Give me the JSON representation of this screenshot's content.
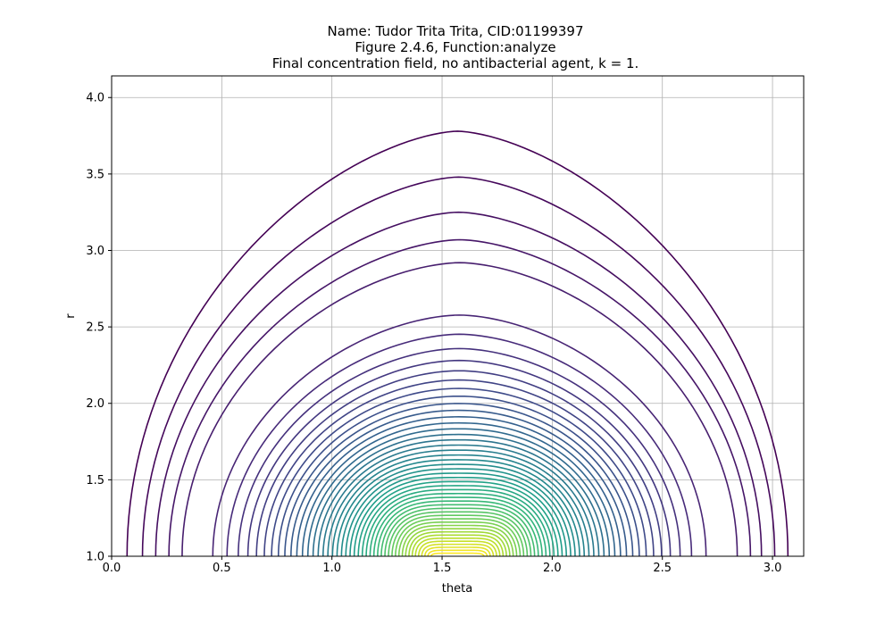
{
  "chart_data": {
    "type": "contour",
    "title_lines": [
      "Name: Tudor Trita Trita, CID:01199397",
      "Figure 2.4.6, Function:analyze",
      "Final concentration field, no antibacterial agent, k = 1."
    ],
    "xlabel": "theta",
    "ylabel": "r",
    "xlim": [
      0.0,
      3.14159
    ],
    "ylim": [
      1.0,
      4.14159
    ],
    "xticks": [
      0.0,
      0.5,
      1.0,
      1.5,
      2.0,
      2.5,
      3.0
    ],
    "xtick_labels": [
      "0.0",
      "0.5",
      "1.0",
      "1.5",
      "2.0",
      "2.5",
      "3.0"
    ],
    "yticks": [
      1.0,
      1.5,
      2.0,
      2.5,
      3.0,
      3.5,
      4.0
    ],
    "ytick_labels": [
      "1.0",
      "1.5",
      "2.0",
      "2.5",
      "3.0",
      "3.5",
      "4.0"
    ],
    "grid": true,
    "colormap": "viridis",
    "contour_count": 50,
    "outer_contours": [
      {
        "peak_r": 3.78,
        "left_theta": 0.07,
        "right_theta": 3.07
      },
      {
        "peak_r": 3.48,
        "left_theta": 0.14,
        "right_theta": 3.01
      },
      {
        "peak_r": 3.25,
        "left_theta": 0.2,
        "right_theta": 2.95
      },
      {
        "peak_r": 3.07,
        "left_theta": 0.26,
        "right_theta": 2.9
      },
      {
        "peak_r": 2.92,
        "left_theta": 0.32,
        "right_theta": 2.84
      }
    ],
    "innermost_contour": {
      "peak_r": 1.02,
      "left_theta": 1.45,
      "right_theta": 1.69
    }
  }
}
